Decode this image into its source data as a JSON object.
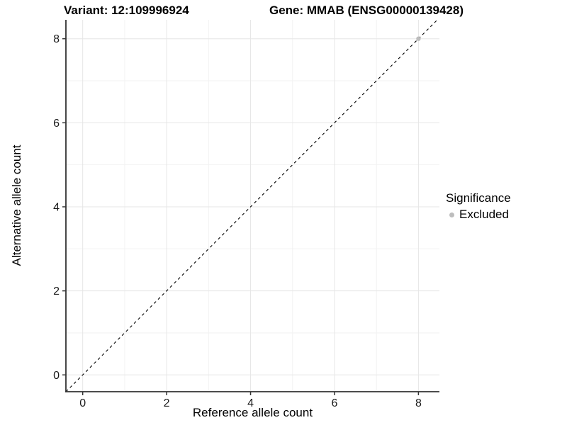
{
  "legend": {
    "title": "Significance",
    "items": [
      {
        "label": "Excluded",
        "color": "#bdbdbd"
      }
    ]
  },
  "chart_data": {
    "type": "scatter",
    "titles": {
      "left": "Variant: 12:109996924",
      "right": "Gene: MMAB (ENSG00000139428)"
    },
    "xlabel": "Reference allele count",
    "ylabel": "Alternative allele count",
    "xlim": [
      -0.4,
      8.5
    ],
    "ylim": [
      -0.4,
      8.45
    ],
    "x_ticks": [
      0,
      2,
      4,
      6,
      8
    ],
    "y_ticks": [
      0,
      2,
      4,
      6,
      8
    ],
    "x_minor_ticks": [
      1,
      3,
      5,
      7
    ],
    "y_minor_ticks": [
      1,
      3,
      5,
      7
    ],
    "grid": true,
    "legend_position": "right",
    "series": [
      {
        "name": "Excluded",
        "color": "#bdbdbd",
        "points": [
          [
            8,
            8
          ]
        ]
      }
    ],
    "reference_line": {
      "slope": 1,
      "intercept": 0,
      "style": "dashed",
      "color": "#000000"
    }
  },
  "style": {
    "grid_major_color": "#e6e6e6",
    "grid_minor_color": "#f2f2f2",
    "axis_color": "#333333",
    "tick_label_color": "#1a1a1a"
  }
}
